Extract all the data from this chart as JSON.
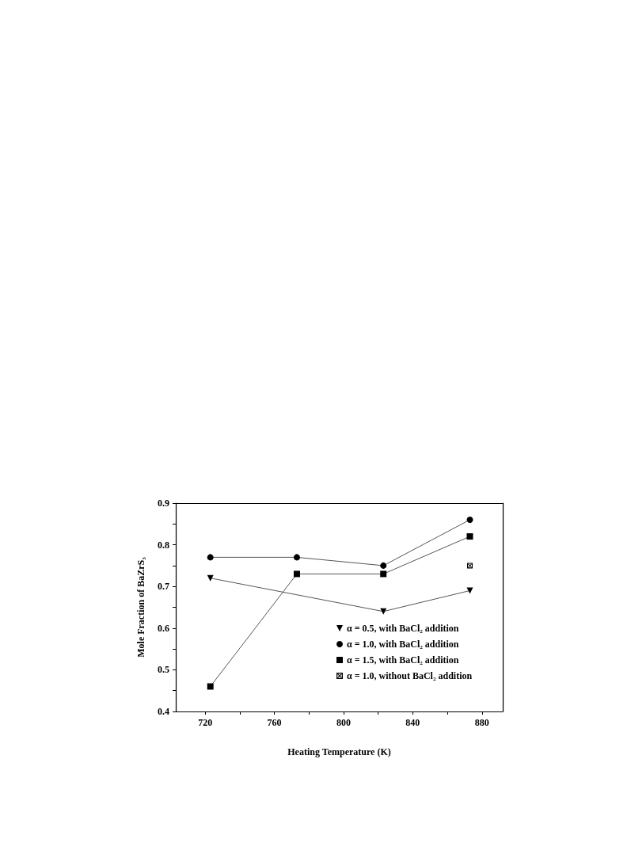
{
  "chart_data": {
    "type": "line",
    "xlabel": "Heating Temperature (K)",
    "ylabel": "Mole Fraction of BaZrS₃",
    "xlim": [
      703,
      892
    ],
    "xticks": [
      720,
      {
        "value": 740,
        "label": null
      },
      760,
      {
        "value": 780,
        "label": null
      },
      800,
      {
        "value": 820,
        "label": null
      },
      840,
      {
        "value": 860,
        "label": null
      },
      880
    ],
    "ylim": [
      0.4,
      0.9
    ],
    "yticks": [
      0.4,
      {
        "value": 0.45,
        "label": null
      },
      0.5,
      {
        "value": 0.55,
        "label": null
      },
      0.6,
      {
        "value": 0.65,
        "label": null
      },
      0.7,
      {
        "value": 0.75,
        "label": null
      },
      0.8,
      {
        "value": 0.85,
        "label": null
      },
      0.9
    ],
    "grid": false,
    "legend": "bottom right",
    "line_style": "solid",
    "series": [
      {
        "name": "α = 0.5, with BaCl₂ addition",
        "color": "#000000",
        "marker": "triangle",
        "x": [
          723,
          773,
          823,
          873
        ],
        "values": [
          0.72,
          null,
          0.64,
          0.69
        ]
      },
      {
        "name": "α = 1.0, with BaCl₂ addition",
        "color": "#000000",
        "marker": "circle",
        "x": [
          723,
          773,
          823,
          873
        ],
        "values": [
          0.77,
          0.77,
          0.75,
          0.86
        ]
      },
      {
        "name": "α = 1.5, with BaCl₂ addition",
        "color": "#000000",
        "marker": "square",
        "x": [
          723,
          773,
          823,
          873
        ],
        "values": [
          0.46,
          0.73,
          0.73,
          0.82
        ]
      },
      {
        "name": "α = 1.0, without BaCl₂ addition",
        "color": "#000000",
        "marker": "cross",
        "x": [
          873
        ],
        "values": [
          0.75
        ]
      }
    ]
  }
}
